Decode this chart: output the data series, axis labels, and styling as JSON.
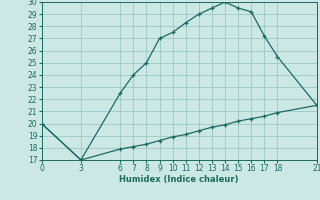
{
  "xlabel": "Humidex (Indice chaleur)",
  "bg_color": "#cce8e4",
  "grid_color": "#9dc8c2",
  "line_color": "#1a6b5e",
  "curve1_x": [
    0,
    3,
    6,
    7,
    8,
    9,
    10,
    11,
    12,
    13,
    14,
    15,
    16,
    17,
    18,
    21
  ],
  "curve1_y": [
    20.0,
    17.0,
    22.5,
    24.0,
    25.0,
    27.0,
    27.5,
    28.3,
    29.0,
    29.5,
    30.0,
    29.5,
    29.2,
    27.2,
    25.5,
    21.5
  ],
  "curve2_x": [
    0,
    3,
    6,
    7,
    8,
    9,
    10,
    11,
    12,
    13,
    14,
    15,
    16,
    17,
    18,
    21
  ],
  "curve2_y": [
    20.0,
    17.0,
    17.9,
    18.1,
    18.3,
    18.6,
    18.9,
    19.1,
    19.4,
    19.7,
    19.9,
    20.2,
    20.4,
    20.6,
    20.9,
    21.5
  ],
  "xlim": [
    0,
    21
  ],
  "ylim": [
    17,
    30
  ],
  "xticks": [
    0,
    3,
    6,
    7,
    8,
    9,
    10,
    11,
    12,
    13,
    14,
    15,
    16,
    17,
    18,
    21
  ],
  "yticks": [
    17,
    18,
    19,
    20,
    21,
    22,
    23,
    24,
    25,
    26,
    27,
    28,
    29,
    30
  ]
}
